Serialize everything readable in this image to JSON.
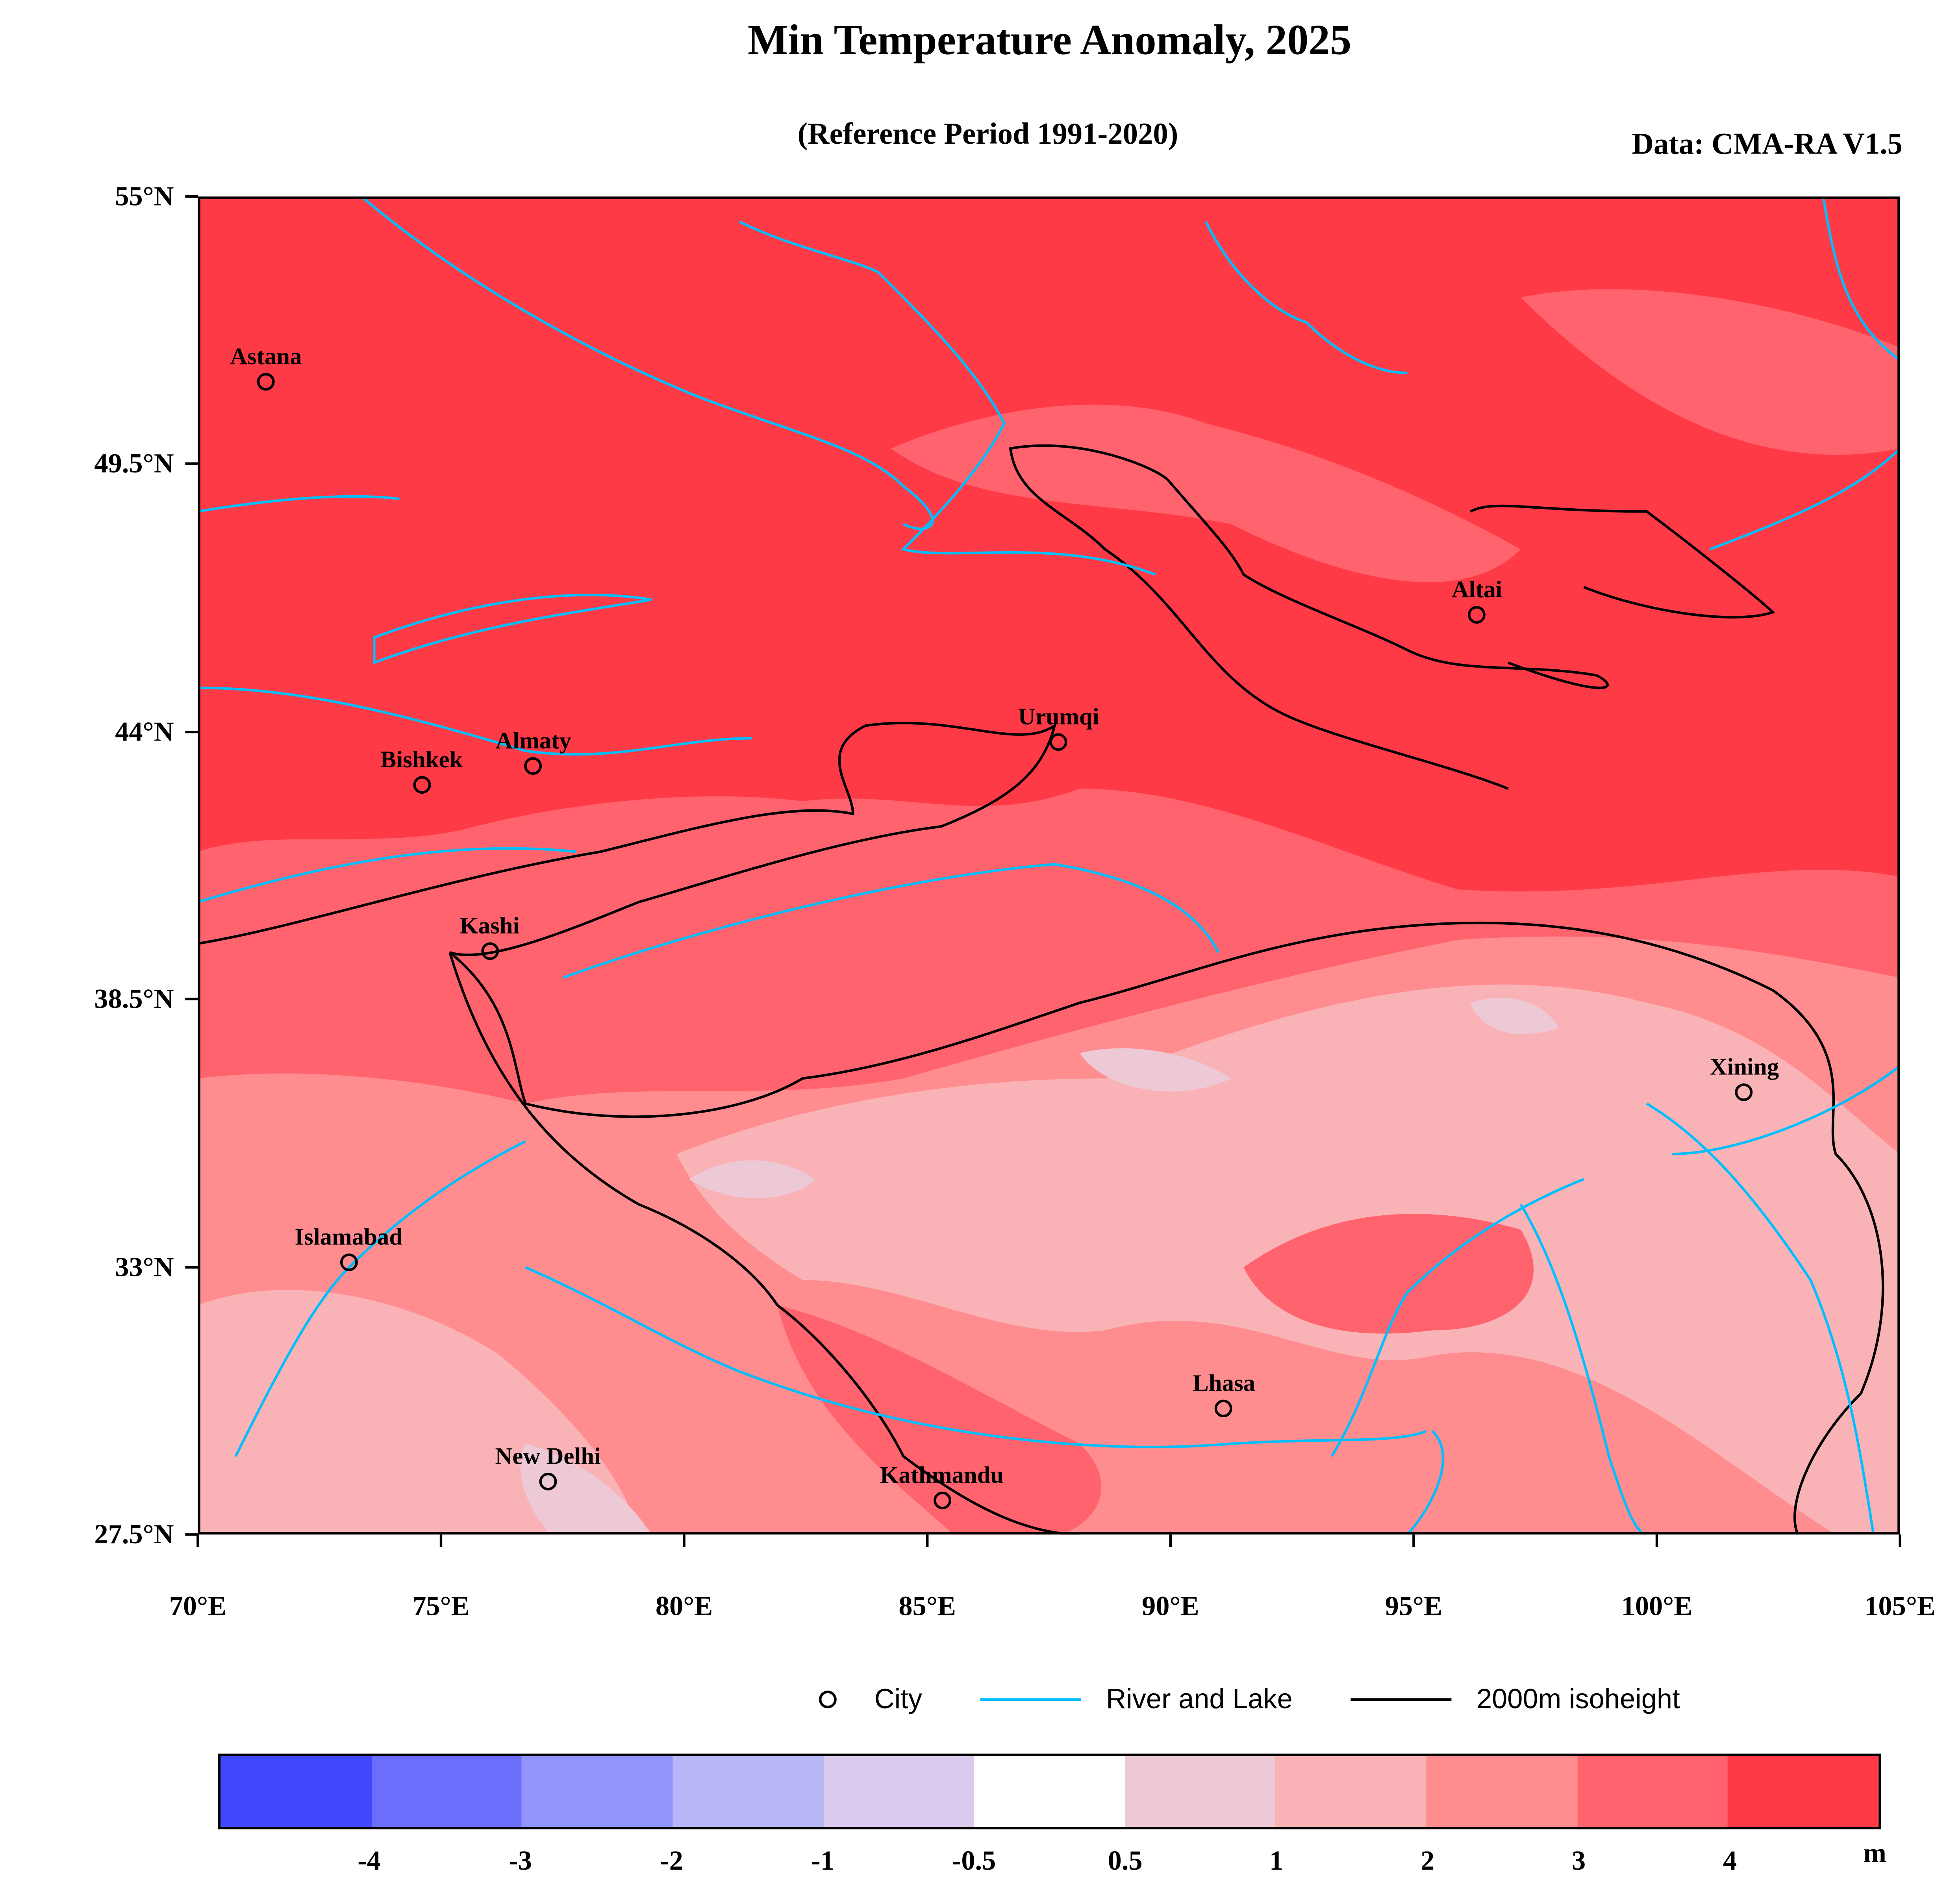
{
  "title": "Min Temperature Anomaly, 2025",
  "subtitle": "(Reference Period 1991-2020)",
  "source": "Data: CMA-RA V1.5",
  "chart_data": {
    "type": "map",
    "lon_range": [
      70,
      105
    ],
    "lat_range": [
      27.5,
      55
    ],
    "lat_ticks": [
      "55°N",
      "49.5°N",
      "44°N",
      "38.5°N",
      "33°N",
      "27.5°N"
    ],
    "lat_tick_values": [
      55,
      49.5,
      44,
      38.5,
      33,
      27.5
    ],
    "lon_ticks": [
      "70°E",
      "75°E",
      "80°E",
      "85°E",
      "90°E",
      "95°E",
      "100°E",
      "105°E"
    ],
    "lon_tick_values": [
      70,
      75,
      80,
      85,
      90,
      95,
      100,
      105
    ],
    "cities": [
      {
        "name": "Astana",
        "lon": 71.4,
        "lat": 51.2
      },
      {
        "name": "Bishkek",
        "lon": 74.6,
        "lat": 42.9
      },
      {
        "name": "Almaty",
        "lon": 76.9,
        "lat": 43.3
      },
      {
        "name": "Kashi",
        "lon": 76.0,
        "lat": 39.5
      },
      {
        "name": "Urumqi",
        "lon": 87.7,
        "lat": 43.8
      },
      {
        "name": "Altai",
        "lon": 96.3,
        "lat": 46.4
      },
      {
        "name": "Xining",
        "lon": 101.8,
        "lat": 36.6
      },
      {
        "name": "Islamabad",
        "lon": 73.1,
        "lat": 33.1
      },
      {
        "name": "New Delhi",
        "lon": 77.2,
        "lat": 28.6
      },
      {
        "name": "Kathmandu",
        "lon": 85.3,
        "lat": 28.2
      },
      {
        "name": "Lhasa",
        "lon": 91.1,
        "lat": 30.1
      }
    ],
    "legend": {
      "city": "City",
      "river": "River and Lake",
      "isoheight": "2000m isoheight"
    },
    "colorbar": {
      "colors": [
        "#3F48FB",
        "#6A6EFB",
        "#9094FB",
        "#B8B6F7",
        "#D9CAED",
        "#FFFFFF",
        "#EDC9D6",
        "#F9B3B7",
        "#FF8C8E",
        "#FF636D",
        "#FF3A47"
      ],
      "labels": [
        "-4",
        "-3",
        "-2",
        "-1",
        "-0.5",
        "0.5",
        "1",
        "2",
        "3",
        "4"
      ],
      "unit": "m"
    },
    "river_color": "#00BFFF",
    "isoheight_color": "#000000"
  }
}
